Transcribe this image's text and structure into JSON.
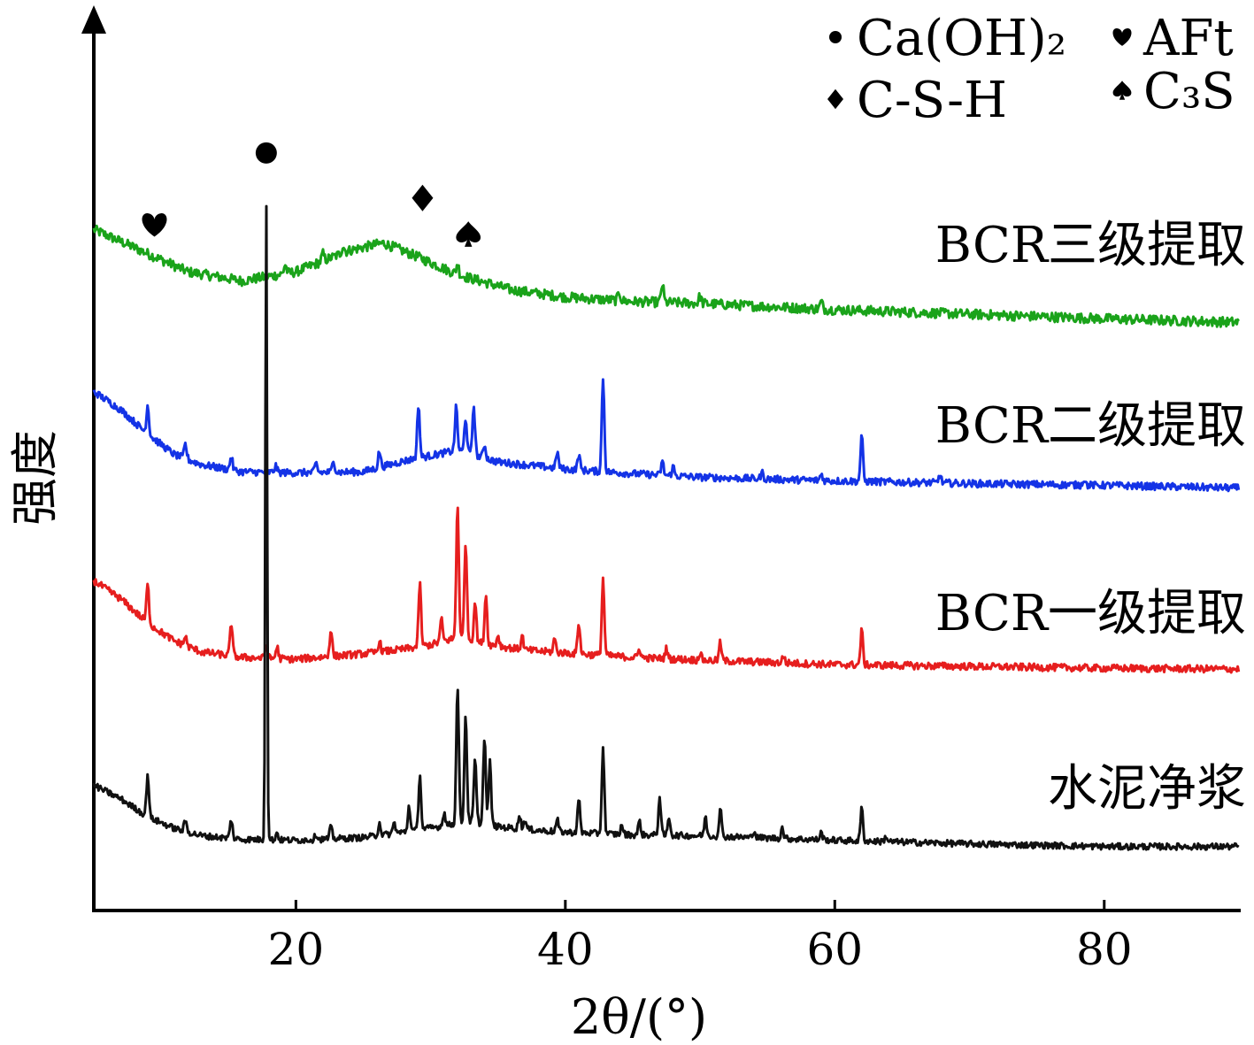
{
  "chart_data": {
    "type": "line",
    "title": "",
    "xlabel": "2θ/(°)",
    "ylabel": "强度",
    "xlim": [
      5,
      90
    ],
    "xticks": [
      20,
      40,
      60,
      80
    ],
    "ylim": [
      0,
      100
    ],
    "y_axis_ticks": false,
    "grid": false,
    "legend": {
      "position": "top-right",
      "entries": [
        {
          "symbol": "circle",
          "label": "Ca(OH)₂"
        },
        {
          "symbol": "heart",
          "label": "AFt"
        },
        {
          "symbol": "diamond",
          "label": "C-S-H"
        },
        {
          "symbol": "spade",
          "label": "C₃S"
        }
      ]
    },
    "peak_markers": [
      {
        "symbol": "heart",
        "x": 9.5,
        "y": 76,
        "phase": "AFt"
      },
      {
        "symbol": "circle",
        "x": 17.8,
        "y": 84,
        "phase": "Ca(OH)₂"
      },
      {
        "symbol": "diamond",
        "x": 29.4,
        "y": 79,
        "phase": "C-S-H"
      },
      {
        "symbol": "spade",
        "x": 32.8,
        "y": 75,
        "phase": "C₃S"
      }
    ],
    "series": [
      {
        "name": "BCR三级提取",
        "color": "#1aa31a",
        "baseline": [
          [
            5,
            75.5
          ],
          [
            8,
            73.5
          ],
          [
            12,
            70.8
          ],
          [
            16,
            69.8
          ],
          [
            20,
            70.8
          ],
          [
            24,
            73.2
          ],
          [
            26.5,
            74.0
          ],
          [
            29,
            72.5
          ],
          [
            32,
            70.5
          ],
          [
            36,
            68.8
          ],
          [
            40,
            68.0
          ],
          [
            45,
            67.5
          ],
          [
            50,
            67.3
          ],
          [
            60,
            66.6
          ],
          [
            70,
            66.1
          ],
          [
            80,
            65.6
          ],
          [
            90,
            65.2
          ]
        ],
        "peaks": [
          [
            19.2,
            1.0
          ],
          [
            22.0,
            0.8
          ],
          [
            23.5,
            0.8
          ],
          [
            32.0,
            1.2
          ],
          [
            44.0,
            0.9
          ],
          [
            47.2,
            2.0
          ],
          [
            50.0,
            0.8
          ],
          [
            59.0,
            0.8
          ]
        ],
        "noise": 0.55
      },
      {
        "name": "BCR二级提取",
        "color": "#1433e6",
        "baseline": [
          [
            5,
            57.5
          ],
          [
            7,
            55.5
          ],
          [
            9,
            52.8
          ],
          [
            11,
            50.5
          ],
          [
            13,
            49.4
          ],
          [
            16,
            48.6
          ],
          [
            20,
            48.5
          ],
          [
            25,
            48.6
          ],
          [
            28,
            49.8
          ],
          [
            30,
            50.4
          ],
          [
            32,
            51.0
          ],
          [
            35,
            49.7
          ],
          [
            40,
            48.9
          ],
          [
            45,
            48.4
          ],
          [
            50,
            48.0
          ],
          [
            60,
            47.6
          ],
          [
            70,
            47.3
          ],
          [
            80,
            47.1
          ],
          [
            90,
            46.8
          ]
        ],
        "peaks": [
          [
            9.0,
            3.2
          ],
          [
            11.8,
            1.6
          ],
          [
            15.2,
            1.5
          ],
          [
            18.5,
            0.7
          ],
          [
            21.5,
            1.0
          ],
          [
            22.8,
            1.3
          ],
          [
            26.2,
            1.8
          ],
          [
            29.1,
            6.0
          ],
          [
            31.9,
            4.8
          ],
          [
            32.6,
            3.9
          ],
          [
            33.2,
            5.5
          ],
          [
            34.0,
            1.5
          ],
          [
            39.4,
            1.8
          ],
          [
            41.0,
            1.7
          ],
          [
            42.8,
            10.5
          ],
          [
            47.2,
            1.5
          ],
          [
            48.0,
            1.0
          ],
          [
            54.6,
            0.7
          ],
          [
            59.0,
            0.7
          ],
          [
            62.0,
            5.0
          ],
          [
            67.8,
            0.9
          ],
          [
            78.5,
            0.7
          ]
        ],
        "noise": 0.4
      },
      {
        "name": "BCR一级提取",
        "color": "#e61e1e",
        "baseline": [
          [
            5,
            36.5
          ],
          [
            7,
            34.5
          ],
          [
            9,
            31.8
          ],
          [
            11,
            29.8
          ],
          [
            13,
            28.6
          ],
          [
            16,
            28.0
          ],
          [
            20,
            27.8
          ],
          [
            25,
            28.4
          ],
          [
            28,
            28.9
          ],
          [
            30,
            29.4
          ],
          [
            32,
            30.2
          ],
          [
            34,
            29.5
          ],
          [
            37,
            28.8
          ],
          [
            40,
            28.5
          ],
          [
            45,
            28.0
          ],
          [
            50,
            27.7
          ],
          [
            60,
            27.2
          ],
          [
            70,
            27.0
          ],
          [
            80,
            26.8
          ],
          [
            90,
            26.7
          ]
        ],
        "peaks": [
          [
            9.0,
            4.3
          ],
          [
            11.8,
            1.0
          ],
          [
            15.2,
            3.7
          ],
          [
            17.8,
            1.5
          ],
          [
            18.6,
            1.3
          ],
          [
            22.6,
            3.0
          ],
          [
            26.2,
            1.2
          ],
          [
            29.2,
            7.0
          ],
          [
            30.8,
            2.5
          ],
          [
            32.0,
            15.0
          ],
          [
            32.6,
            11.0
          ],
          [
            33.3,
            4.5
          ],
          [
            34.1,
            5.5
          ],
          [
            35.0,
            1.2
          ],
          [
            36.8,
            1.5
          ],
          [
            39.2,
            1.5
          ],
          [
            41.0,
            3.5
          ],
          [
            42.8,
            8.5
          ],
          [
            45.5,
            1.0
          ],
          [
            47.5,
            1.1
          ],
          [
            50.0,
            0.8
          ],
          [
            51.5,
            2.0
          ],
          [
            56.2,
            0.8
          ],
          [
            62.0,
            3.8
          ]
        ],
        "noise": 0.4
      },
      {
        "name": "水泥净浆",
        "color": "#111111",
        "baseline": [
          [
            5,
            13.8
          ],
          [
            7,
            12.3
          ],
          [
            9,
            10.3
          ],
          [
            11,
            9.0
          ],
          [
            13,
            8.2
          ],
          [
            16,
            7.8
          ],
          [
            20,
            7.7
          ],
          [
            25,
            8.0
          ],
          [
            28,
            8.6
          ],
          [
            31,
            9.3
          ],
          [
            33,
            9.8
          ],
          [
            35,
            9.2
          ],
          [
            38,
            8.8
          ],
          [
            40,
            8.6
          ],
          [
            45,
            8.3
          ],
          [
            50,
            8.2
          ],
          [
            60,
            7.7
          ],
          [
            70,
            7.3
          ],
          [
            80,
            7.0
          ],
          [
            90,
            7.0
          ]
        ],
        "peaks": [
          [
            9.0,
            4.7
          ],
          [
            11.8,
            1.2
          ],
          [
            15.2,
            2.1
          ],
          [
            17.8,
            71.5
          ],
          [
            18.6,
            0.8
          ],
          [
            21.5,
            0.6
          ],
          [
            22.6,
            1.3
          ],
          [
            26.2,
            1.4
          ],
          [
            27.3,
            1.2
          ],
          [
            28.4,
            2.8
          ],
          [
            29.2,
            6.0
          ],
          [
            31.0,
            1.5
          ],
          [
            32.0,
            15.5
          ],
          [
            32.6,
            12.0
          ],
          [
            33.3,
            7.0
          ],
          [
            34.0,
            9.8
          ],
          [
            34.4,
            7.0
          ],
          [
            36.6,
            1.5
          ],
          [
            37.0,
            1.0
          ],
          [
            39.4,
            1.3
          ],
          [
            41.0,
            3.7
          ],
          [
            42.8,
            9.5
          ],
          [
            44.2,
            1.0
          ],
          [
            45.5,
            1.5
          ],
          [
            47.0,
            4.2
          ],
          [
            47.7,
            2.0
          ],
          [
            50.4,
            2.0
          ],
          [
            51.5,
            3.1
          ],
          [
            54.0,
            0.8
          ],
          [
            56.1,
            1.2
          ],
          [
            59.0,
            0.8
          ],
          [
            62.0,
            3.6
          ],
          [
            63.8,
            0.6
          ]
        ],
        "noise": 0.35
      }
    ]
  }
}
